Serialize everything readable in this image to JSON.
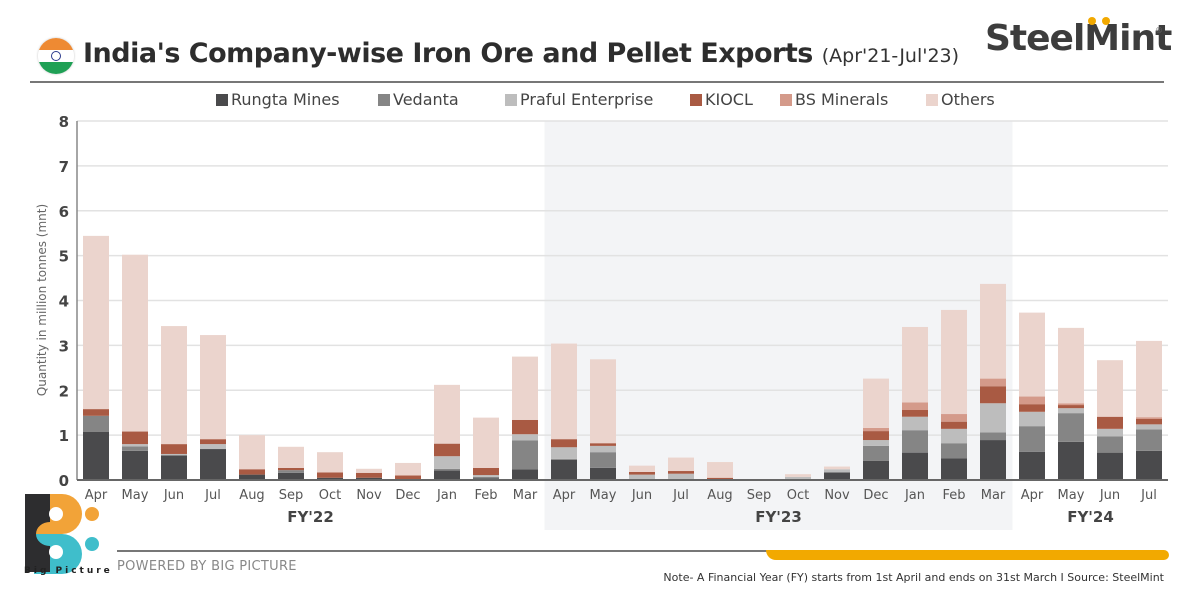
{
  "header": {
    "title": "India's Company-wise Iron Ore and Pellet Exports",
    "subtitle": "(Apr'21-Jul'23)",
    "brand": "SteelMint",
    "brand_reg": "®"
  },
  "footer": {
    "logo_label": "Big Picture",
    "powered_by": "POWERED BY BIG PICTURE",
    "note": "Note- A Financial Year (FY) starts from 1st April and ends on 31st March  I  Source: SteelMint"
  },
  "colors": {
    "Rungta Mines": "#4a4a4c",
    "Vedanta": "#858585",
    "Praful Enterprise": "#bdbdbd",
    "KIOCL": "#a95a43",
    "BS Minerals": "#d49a8a",
    "Others": "#ebd4cd",
    "fy_shade": "#f3f4f6",
    "accent": "#f2a900"
  },
  "chart_data": {
    "type": "bar",
    "stacked": true,
    "title": "India's Company-wise Iron Ore and Pellet Exports (Apr'21-Jul'23)",
    "xlabel": "",
    "ylabel": "Quantity in million tonnes (mnt)",
    "ylim": [
      0,
      8
    ],
    "yticks": [
      0,
      1,
      2,
      3,
      4,
      5,
      6,
      7,
      8
    ],
    "grid": true,
    "legend_position": "top",
    "categories": [
      "Apr",
      "May",
      "Jun",
      "Jul",
      "Aug",
      "Sep",
      "Oct",
      "Nov",
      "Dec",
      "Jan",
      "Feb",
      "Mar",
      "Apr",
      "May",
      "Jun",
      "Jul",
      "Aug",
      "Sep",
      "Oct",
      "Nov",
      "Dec",
      "Jan",
      "Feb",
      "Mar",
      "Apr",
      "May",
      "Jun",
      "Jul"
    ],
    "groups": [
      {
        "label": "FY'22",
        "start": 0,
        "end": 11,
        "shaded": false
      },
      {
        "label": "FY'23",
        "start": 12,
        "end": 23,
        "shaded": true
      },
      {
        "label": "FY'24",
        "start": 24,
        "end": 27,
        "shaded": false
      }
    ],
    "series": [
      {
        "name": "Rungta Mines",
        "values": [
          1.07,
          0.65,
          0.55,
          0.69,
          0.12,
          0.16,
          0.05,
          0.05,
          0,
          0.21,
          0.04,
          0.24,
          0.45,
          0.27,
          0,
          0,
          0,
          0,
          0,
          0.17,
          0.43,
          0.61,
          0.48,
          0.89,
          0.63,
          0.85,
          0.61,
          0.65
        ]
      },
      {
        "name": "Vedanta",
        "values": [
          0.36,
          0.1,
          0,
          0,
          0,
          0.06,
          0,
          0,
          0,
          0.04,
          0.03,
          0.64,
          0.02,
          0.35,
          0,
          0,
          0,
          0,
          0,
          0,
          0.33,
          0.5,
          0.34,
          0.17,
          0.57,
          0.64,
          0.36,
          0.48
        ]
      },
      {
        "name": "Praful Enterprise",
        "values": [
          0,
          0.05,
          0.03,
          0.11,
          0,
          0,
          0,
          0,
          0,
          0.28,
          0.04,
          0.14,
          0.26,
          0.14,
          0.12,
          0.14,
          0,
          0,
          0.07,
          0.07,
          0.13,
          0.3,
          0.32,
          0.65,
          0.32,
          0.11,
          0.17,
          0.11
        ]
      },
      {
        "name": "KIOCL",
        "values": [
          0.15,
          0.28,
          0.22,
          0.11,
          0.12,
          0.05,
          0.12,
          0.11,
          0.1,
          0.28,
          0.16,
          0.32,
          0.18,
          0.06,
          0.06,
          0.06,
          0.05,
          0,
          0,
          0,
          0.2,
          0.15,
          0.16,
          0.38,
          0.17,
          0.07,
          0.27,
          0.12
        ]
      },
      {
        "name": "BS Minerals",
        "values": [
          0,
          0,
          0,
          0,
          0,
          0,
          0,
          0,
          0,
          0,
          0,
          0,
          0,
          0,
          0,
          0,
          0,
          0,
          0,
          0,
          0.07,
          0.17,
          0.17,
          0.17,
          0.17,
          0.04,
          0,
          0.04
        ]
      },
      {
        "name": "Others",
        "values": [
          3.86,
          3.94,
          2.63,
          2.32,
          0.76,
          0.47,
          0.45,
          0.09,
          0.28,
          1.31,
          1.12,
          1.41,
          2.13,
          1.87,
          0.14,
          0.3,
          0.35,
          0,
          0.06,
          0.06,
          1.1,
          1.68,
          2.32,
          2.11,
          1.87,
          1.68,
          1.26,
          1.7
        ]
      }
    ]
  }
}
